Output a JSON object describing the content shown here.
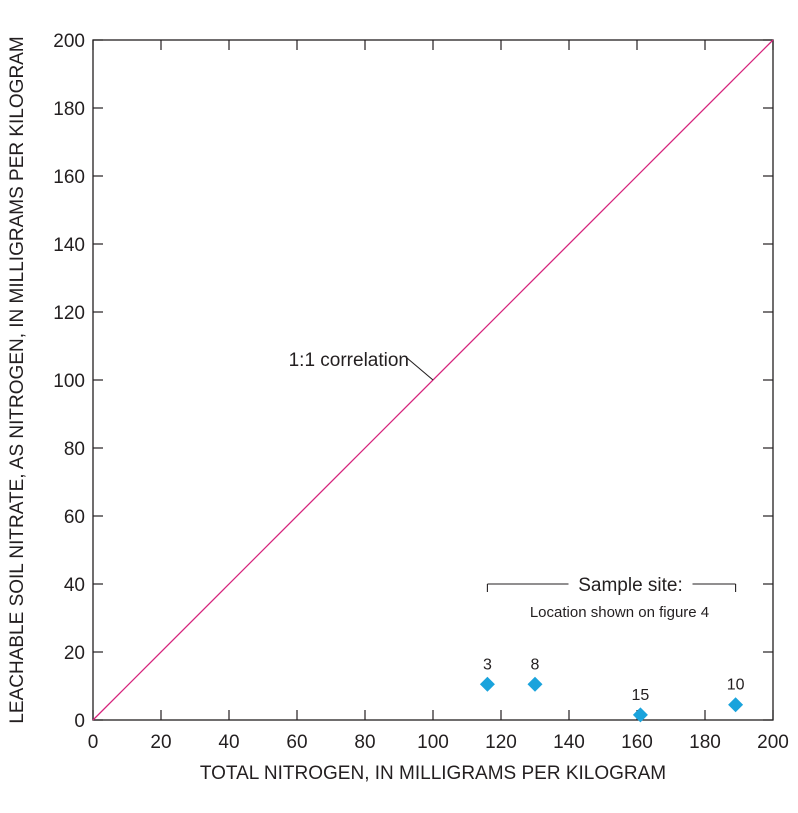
{
  "chart_data": {
    "type": "scatter",
    "xlabel": "TOTAL NITROGEN, IN MILLIGRAMS PER KILOGRAM",
    "ylabel": "LEACHABLE SOIL NITRATE, AS NITROGEN, IN MILLIGRAMS PER KILOGRAM",
    "xlim": [
      0,
      200
    ],
    "ylim": [
      0,
      200
    ],
    "x_ticks": [
      0,
      20,
      40,
      60,
      80,
      100,
      120,
      140,
      160,
      180,
      200
    ],
    "y_ticks": [
      0,
      20,
      40,
      60,
      80,
      100,
      120,
      140,
      160,
      180,
      200
    ],
    "grid": false,
    "series": [
      {
        "name": "Sample site",
        "marker": "diamond",
        "color": "#1aa3dc",
        "points": [
          {
            "label": "3",
            "x": 116,
            "y": 10.5
          },
          {
            "label": "8",
            "x": 130,
            "y": 10.5
          },
          {
            "label": "15",
            "x": 161,
            "y": 1.5
          },
          {
            "label": "10",
            "x": 189,
            "y": 4.5
          }
        ]
      }
    ],
    "reference_line": {
      "label": "1:1 correlation",
      "from": [
        0,
        0
      ],
      "to": [
        200,
        200
      ],
      "color": "#d6247c"
    },
    "legend": {
      "title": "Sample site:",
      "subtitle": "Location shown on figure 4"
    }
  }
}
